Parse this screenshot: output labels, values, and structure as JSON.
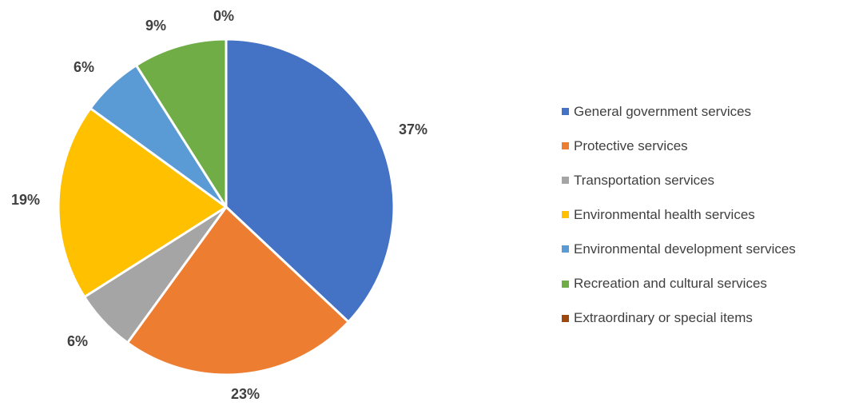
{
  "chart_data": {
    "type": "pie",
    "title": "",
    "legend_position": "right",
    "start_angle_deg": 0,
    "direction": "clockwise",
    "slices": [
      {
        "label": "General government services",
        "value": 37,
        "display": "37%",
        "color": "#4472C4"
      },
      {
        "label": "Protective services",
        "value": 23,
        "display": "23%",
        "color": "#ED7D31"
      },
      {
        "label": "Transportation services",
        "value": 6,
        "display": "6%",
        "color": "#A5A5A5"
      },
      {
        "label": "Environmental health services",
        "value": 19,
        "display": "19%",
        "color": "#FFC000"
      },
      {
        "label": "Environmental development services",
        "value": 6,
        "display": "6%",
        "color": "#5B9BD5"
      },
      {
        "label": "Recreation and cultural services",
        "value": 9,
        "display": "9%",
        "color": "#70AD47"
      },
      {
        "label": "Extraordinary or special items",
        "value": 0,
        "display": "0%",
        "color": "#9E480E"
      }
    ]
  }
}
